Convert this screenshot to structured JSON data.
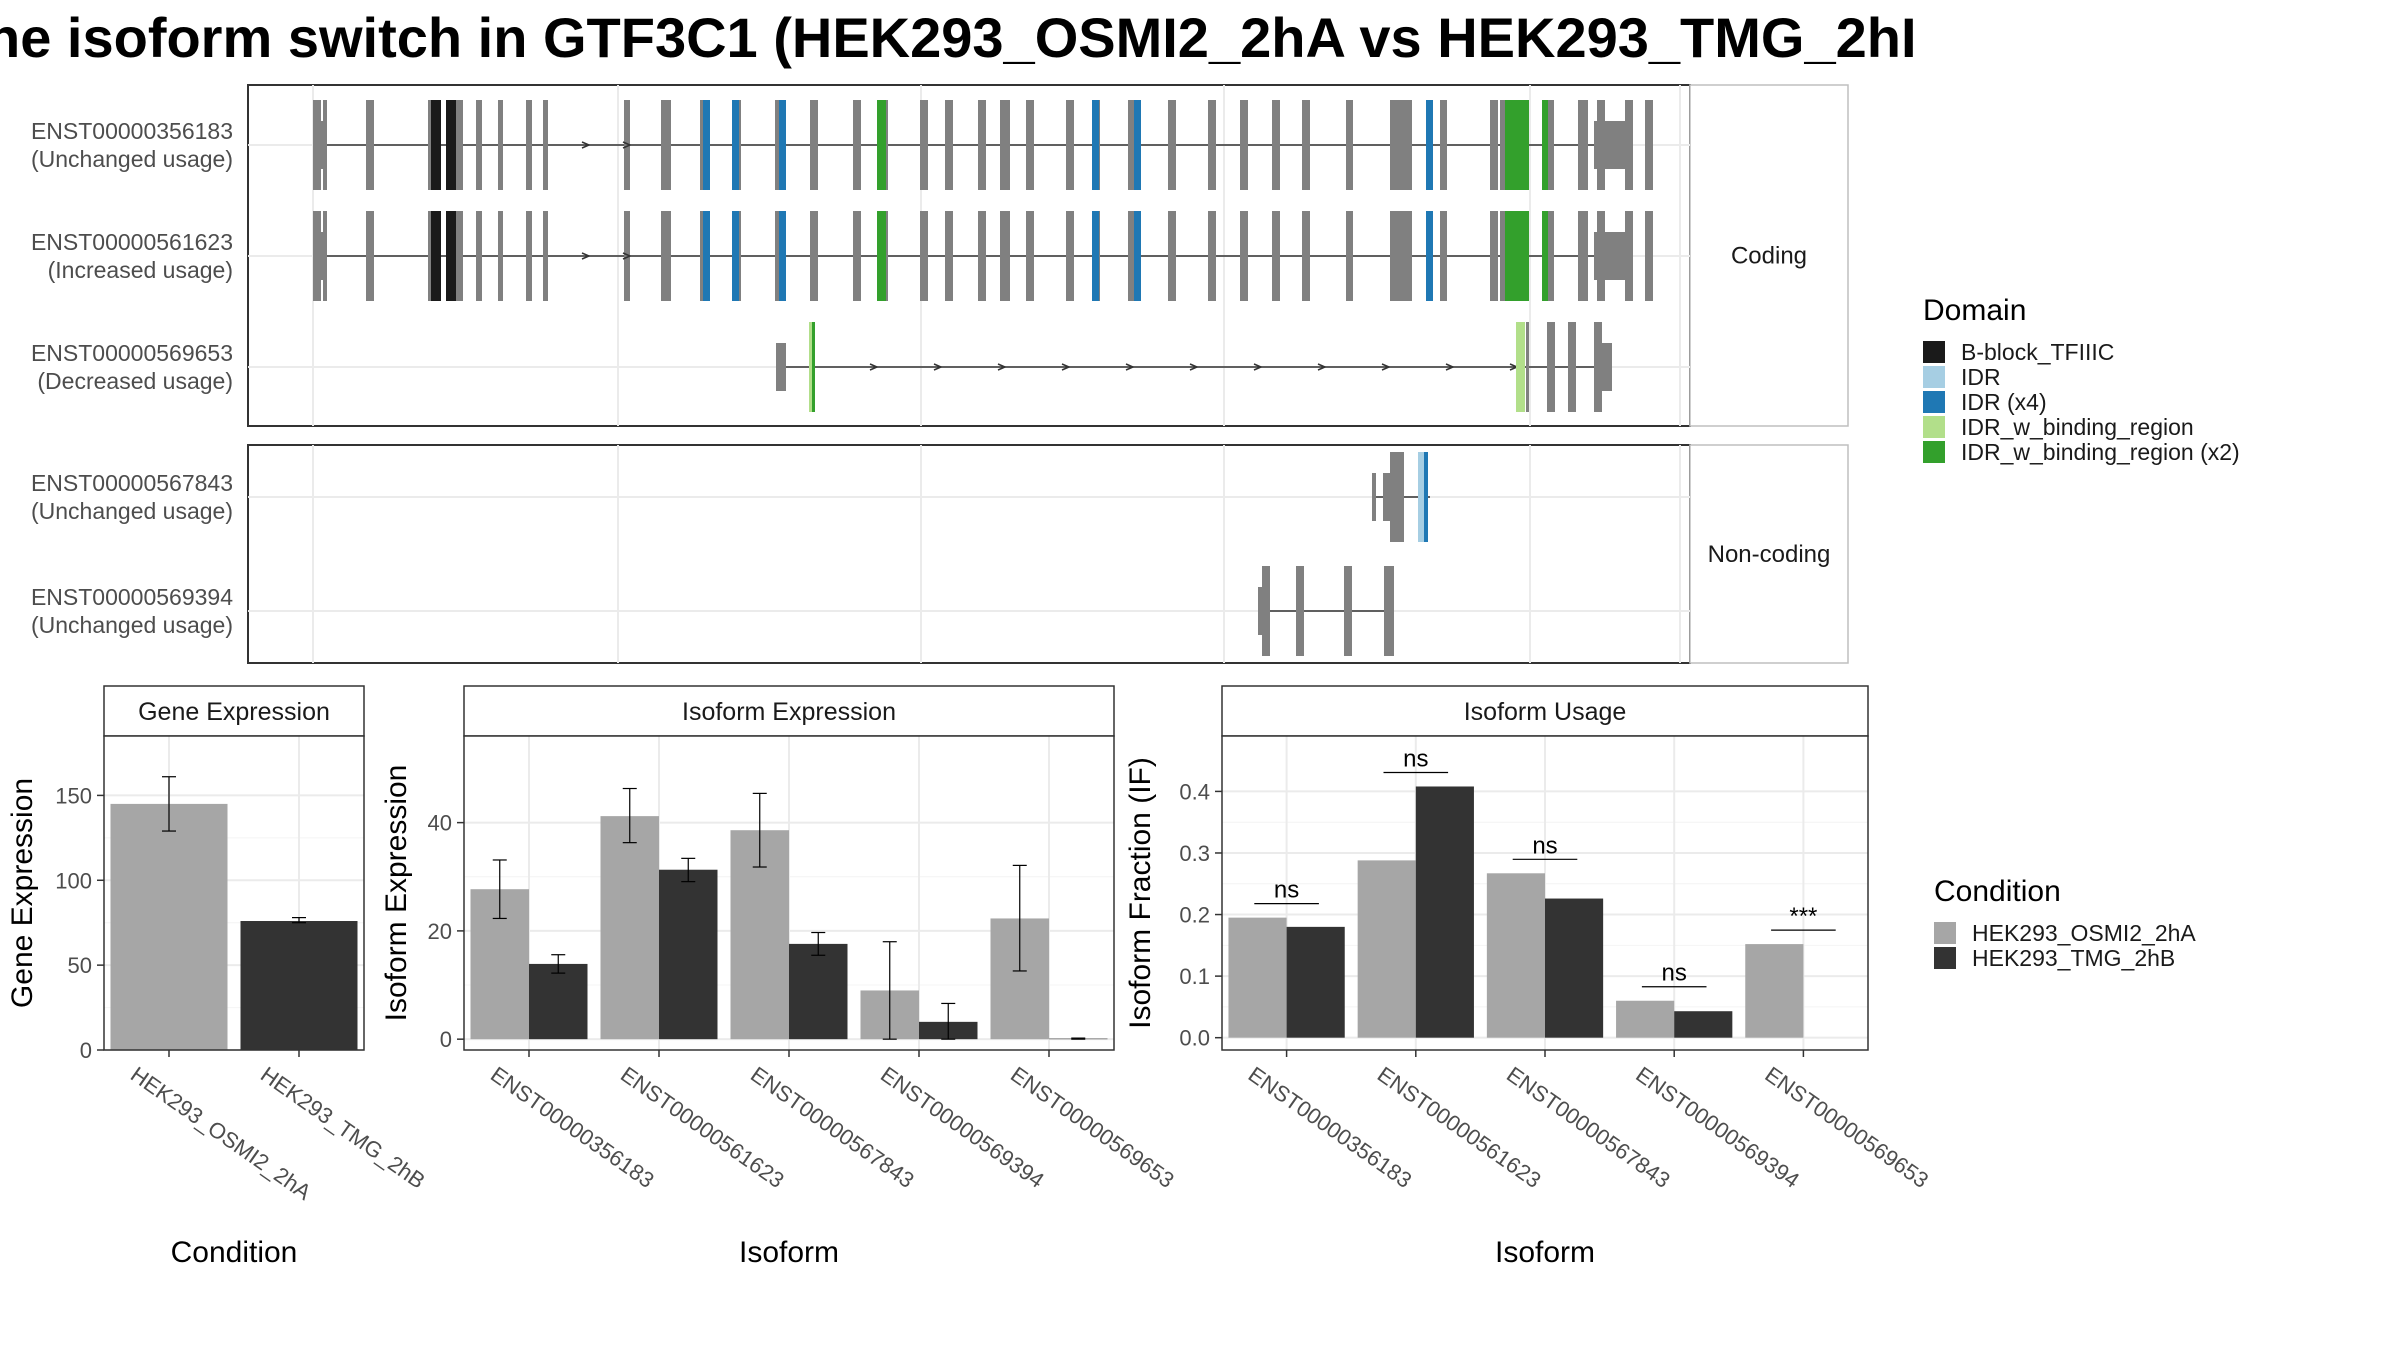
{
  "title": "ne isoform switch in GTF3C1 (HEK293_OSMI2_2hA vs HEK293_TMG_2hI",
  "colors": {
    "B-block_TFIIIC": "#1a1a1a",
    "IDR": "#a6cee3",
    "IDR (x4)": "#1f78b4",
    "IDR_w_binding_region": "#b2df8a",
    "IDR_w_binding_region (x2)": "#33a02c",
    "exon": "#808080",
    "condition_a": "#a6a6a6",
    "condition_b": "#333333"
  },
  "structure": {
    "facets": [
      "Coding",
      "Non-coding"
    ],
    "transcripts": [
      {
        "id": "ENST00000356183",
        "usage": "(Unchanged usage)",
        "group": "Coding"
      },
      {
        "id": "ENST00000561623",
        "usage": "(Increased usage)",
        "group": "Coding"
      },
      {
        "id": "ENST00000569653",
        "usage": "(Decreased usage)",
        "group": "Coding"
      },
      {
        "id": "ENST00000567843",
        "usage": "(Unchanged usage)",
        "group": "Non-coding"
      },
      {
        "id": "ENST00000569394",
        "usage": "(Unchanged usage)",
        "group": "Non-coding"
      }
    ],
    "legend_title": "Domain",
    "domains": [
      "B-block_TFIIIC",
      "IDR",
      "IDR (x4)",
      "IDR_w_binding_region",
      "IDR_w_binding_region (x2)"
    ]
  },
  "chart_data": [
    {
      "type": "bar",
      "title": "Gene Expression",
      "xlabel": "Condition",
      "ylabel": "Gene Expression",
      "categories": [
        "HEK293_OSMI2_2hA",
        "HEK293_TMG_2hB"
      ],
      "values": [
        145,
        76
      ],
      "errors": [
        [
          129,
          161
        ],
        [
          75,
          78
        ]
      ],
      "ylim": [
        0,
        185
      ],
      "yticks": [
        0,
        50,
        100,
        150
      ]
    },
    {
      "type": "bar",
      "title": "Isoform Expression",
      "xlabel": "Isoform",
      "ylabel": "Isoform Expression",
      "categories": [
        "ENST00000356183",
        "ENST00000561623",
        "ENST00000567843",
        "ENST00000569394",
        "ENST00000569653"
      ],
      "series": [
        {
          "name": "HEK293_OSMI2_2hA",
          "values": [
            27.7,
            41.2,
            38.6,
            9.0,
            22.3
          ],
          "errors": [
            [
              22.3,
              33.1
            ],
            [
              36.3,
              46.3
            ],
            [
              31.8,
              45.4
            ],
            [
              0,
              18.0
            ],
            [
              12.6,
              32.1
            ]
          ]
        },
        {
          "name": "HEK293_TMG_2hB",
          "values": [
            13.9,
            31.3,
            17.6,
            3.2,
            0.1
          ],
          "errors": [
            [
              12.2,
              15.6
            ],
            [
              29.1,
              33.4
            ],
            [
              15.5,
              19.7
            ],
            [
              0,
              6.6
            ],
            [
              0,
              0.2
            ]
          ]
        }
      ],
      "ylim": [
        -2,
        56
      ],
      "yticks": [
        0,
        20,
        40
      ]
    },
    {
      "type": "bar",
      "title": "Isoform Usage",
      "xlabel": "Isoform",
      "ylabel": "Isoform Fraction (IF)",
      "categories": [
        "ENST00000356183",
        "ENST00000561623",
        "ENST00000567843",
        "ENST00000569394",
        "ENST00000569653"
      ],
      "series": [
        {
          "name": "HEK293_OSMI2_2hA",
          "values": [
            0.195,
            0.288,
            0.267,
            0.06,
            0.152
          ]
        },
        {
          "name": "HEK293_TMG_2hB",
          "values": [
            0.18,
            0.408,
            0.226,
            0.043,
            0.0
          ]
        }
      ],
      "significance": [
        "ns",
        "ns",
        "ns",
        "ns",
        "***"
      ],
      "ylim": [
        -0.02,
        0.49
      ],
      "yticks": [
        0.0,
        0.1,
        0.2,
        0.3,
        0.4
      ],
      "ytick_labels": [
        "0.0",
        "0.1",
        "0.2",
        "0.3",
        "0.4"
      ]
    }
  ],
  "condition_legend": {
    "title": "Condition",
    "items": [
      "HEK293_OSMI2_2hA",
      "HEK293_TMG_2hB"
    ]
  }
}
